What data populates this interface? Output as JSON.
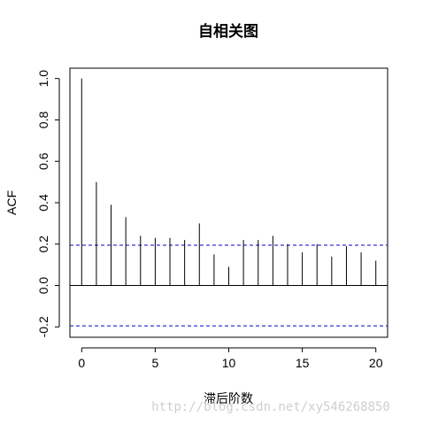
{
  "chart_data": {
    "type": "bar",
    "title": "自相关图",
    "xlabel": "滞后阶数",
    "ylabel": "ACF",
    "lags": [
      0,
      1,
      2,
      3,
      4,
      5,
      6,
      7,
      8,
      9,
      10,
      11,
      12,
      13,
      14,
      15,
      16,
      17,
      18,
      19,
      20
    ],
    "values": [
      1.0,
      0.5,
      0.39,
      0.33,
      0.24,
      0.23,
      0.23,
      0.22,
      0.3,
      0.15,
      0.09,
      0.22,
      0.22,
      0.24,
      0.2,
      0.16,
      0.2,
      0.14,
      0.19,
      0.16,
      0.12
    ],
    "xlim": [
      -0.8,
      20.8
    ],
    "ylim": [
      -0.25,
      1.05
    ],
    "x_ticks": [
      0,
      5,
      10,
      15,
      20
    ],
    "y_ticks": [
      -0.2,
      0.0,
      0.2,
      0.4,
      0.6,
      0.8,
      1.0
    ],
    "x_tick_labels": [
      "0",
      "5",
      "10",
      "15",
      "20"
    ],
    "y_tick_labels": [
      "-0.2",
      "0.0",
      "0.2",
      "0.4",
      "0.6",
      "0.8",
      "1.0"
    ],
    "confidence_bound": 0.195,
    "zero_line": true,
    "grid": false,
    "bar_color": "#000000",
    "bound_color": "#0000cc"
  },
  "watermark": "http://blog.csdn.net/xy546268850"
}
